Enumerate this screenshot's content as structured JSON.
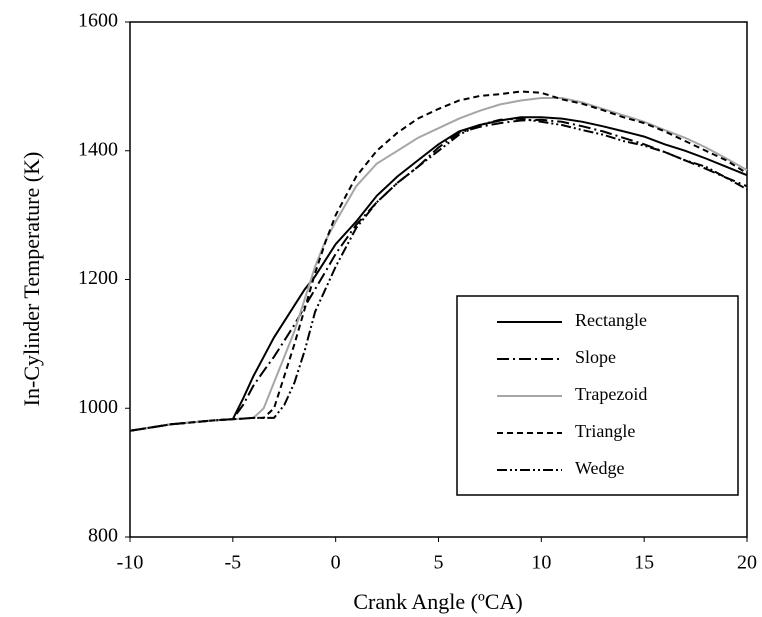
{
  "chart_data": {
    "type": "line",
    "xlabel": "Crank Angle (ºCA)",
    "ylabel": "In-Cylinder Temperature (K)",
    "x": [
      -10,
      -8,
      -6,
      -5,
      -4.5,
      -4,
      -3.5,
      -3,
      -2.5,
      -2,
      -1.5,
      -1,
      -0.5,
      0,
      1,
      2,
      3,
      4,
      5,
      6,
      7,
      8,
      9,
      10,
      11,
      12,
      13,
      14,
      15,
      16,
      17,
      18,
      19,
      20
    ],
    "series": [
      {
        "name": "Rectangle",
        "color": "#000000",
        "dash": "none",
        "values": [
          965,
          975,
          981,
          983,
          1015,
          1050,
          1080,
          1110,
          1135,
          1160,
          1185,
          1205,
          1230,
          1255,
          1290,
          1330,
          1360,
          1385,
          1410,
          1430,
          1440,
          1447,
          1452,
          1452,
          1450,
          1445,
          1438,
          1430,
          1422,
          1410,
          1400,
          1388,
          1375,
          1362
        ]
      },
      {
        "name": "Slope",
        "color": "#000000",
        "dash": "12 4 2 4",
        "values": [
          965,
          975,
          981,
          983,
          1005,
          1035,
          1058,
          1080,
          1105,
          1130,
          1158,
          1185,
          1212,
          1240,
          1285,
          1320,
          1350,
          1375,
          1405,
          1428,
          1437,
          1443,
          1447,
          1448,
          1445,
          1438,
          1430,
          1420,
          1410,
          1398,
          1385,
          1372,
          1358,
          1345
        ]
      },
      {
        "name": "Trapezoid",
        "color": "#a6a6a6",
        "dash": "none",
        "values": [
          965,
          975,
          981,
          983,
          984,
          985,
          1000,
          1040,
          1080,
          1120,
          1170,
          1220,
          1260,
          1290,
          1345,
          1380,
          1400,
          1420,
          1435,
          1450,
          1462,
          1472,
          1478,
          1482,
          1482,
          1475,
          1465,
          1455,
          1445,
          1432,
          1420,
          1405,
          1388,
          1370
        ]
      },
      {
        "name": "Triangle",
        "color": "#000000",
        "dash": "6 4",
        "values": [
          965,
          975,
          981,
          983,
          984,
          985,
          985,
          1000,
          1050,
          1100,
          1155,
          1210,
          1258,
          1300,
          1360,
          1400,
          1428,
          1450,
          1465,
          1478,
          1485,
          1488,
          1492,
          1490,
          1480,
          1473,
          1463,
          1452,
          1443,
          1430,
          1415,
          1400,
          1385,
          1365
        ]
      },
      {
        "name": "Wedge",
        "color": "#000000",
        "dash": "10 3 2 3 2 3",
        "values": [
          965,
          975,
          981,
          983,
          984,
          985,
          985,
          985,
          1005,
          1040,
          1090,
          1150,
          1185,
          1220,
          1280,
          1320,
          1350,
          1375,
          1400,
          1425,
          1440,
          1448,
          1450,
          1445,
          1440,
          1432,
          1425,
          1415,
          1408,
          1398,
          1385,
          1375,
          1358,
          1340
        ]
      }
    ],
    "xlim": [
      -10,
      20
    ],
    "xticks": [
      -10,
      -5,
      0,
      5,
      10,
      15,
      20
    ],
    "ylim": [
      800,
      1600
    ],
    "yticks": [
      800,
      1000,
      1200,
      1400,
      1600
    ],
    "grid": false,
    "legend": "lower right"
  }
}
